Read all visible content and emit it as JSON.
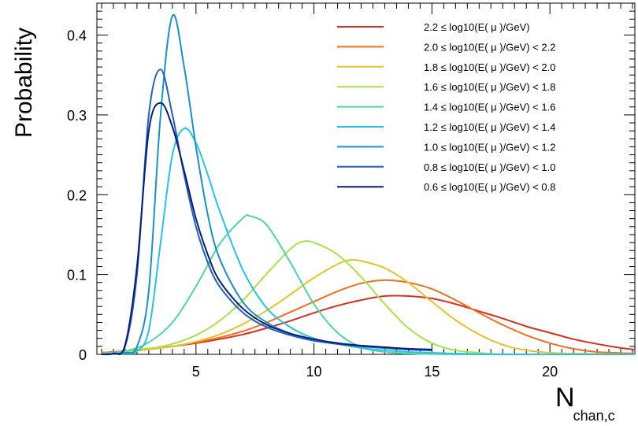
{
  "chart_data": {
    "type": "line",
    "xlabel_main": "N",
    "xlabel_sub": "chan,c",
    "ylabel": "Probability",
    "xlim": [
      0.8,
      23.6
    ],
    "ylim": [
      0,
      0.44
    ],
    "x_ticks": [
      5,
      10,
      15,
      20
    ],
    "x_tick_labels": [
      "5",
      "10",
      "15",
      "20"
    ],
    "y_ticks": [
      0,
      0.1,
      0.2,
      0.3,
      0.4
    ],
    "y_tick_labels": [
      "0",
      "0.1",
      "0.2",
      "0.3",
      "0.4"
    ],
    "legend_position": "top-right",
    "grid": false,
    "series": [
      {
        "name": "2.2 ≤ log10(E( μ )/GeV)",
        "color": "#d7301f",
        "x": [
          1,
          2,
          3,
          4,
          5,
          6,
          7,
          8,
          9,
          10,
          11,
          12,
          13,
          14,
          15,
          16,
          17,
          18,
          19,
          20,
          21,
          22,
          23,
          23.6
        ],
        "y": [
          0.002,
          0.004,
          0.007,
          0.01,
          0.014,
          0.019,
          0.025,
          0.033,
          0.042,
          0.052,
          0.061,
          0.068,
          0.073,
          0.073,
          0.07,
          0.063,
          0.054,
          0.045,
          0.035,
          0.027,
          0.019,
          0.013,
          0.008,
          0.006
        ]
      },
      {
        "name": "2.0 ≤ log10(E( μ )/GeV) < 2.2",
        "color": "#f46d1a",
        "x": [
          1,
          2,
          3,
          4,
          5,
          6,
          7,
          8,
          9,
          10,
          11,
          12,
          13,
          14,
          15,
          16,
          17,
          18,
          19,
          20,
          21,
          22,
          23.6
        ],
        "y": [
          0.002,
          0.004,
          0.007,
          0.01,
          0.015,
          0.021,
          0.029,
          0.04,
          0.053,
          0.066,
          0.079,
          0.089,
          0.093,
          0.09,
          0.082,
          0.068,
          0.052,
          0.037,
          0.024,
          0.014,
          0.007,
          0.003,
          0.001
        ]
      },
      {
        "name": "1.8 ≤ log10(E( μ )/GeV) < 2.0",
        "color": "#e6c229",
        "x": [
          1,
          2,
          3,
          4,
          5,
          6,
          7,
          8,
          9,
          10,
          11,
          11.5,
          12,
          13,
          14,
          15,
          16,
          17,
          18,
          19,
          20,
          21,
          23.6
        ],
        "y": [
          0.001,
          0.003,
          0.006,
          0.01,
          0.016,
          0.025,
          0.038,
          0.055,
          0.075,
          0.096,
          0.113,
          0.118,
          0.117,
          0.108,
          0.09,
          0.066,
          0.043,
          0.025,
          0.012,
          0.005,
          0.002,
          0.001,
          0.0
        ]
      },
      {
        "name": "1.6 ≤ log10(E( μ )/GeV) < 1.8",
        "color": "#a6e34a",
        "x": [
          1,
          2,
          3,
          4,
          5,
          6,
          7,
          8,
          9,
          9.5,
          10,
          11,
          12,
          13,
          14,
          15,
          16,
          17,
          18,
          20,
          23.6
        ],
        "y": [
          0.001,
          0.003,
          0.007,
          0.013,
          0.024,
          0.042,
          0.068,
          0.101,
          0.132,
          0.141,
          0.14,
          0.125,
          0.097,
          0.063,
          0.033,
          0.014,
          0.005,
          0.002,
          0.0,
          0.0,
          0.0
        ]
      },
      {
        "name": "1.4 ≤ log10(E( μ )/GeV) < 1.6",
        "color": "#4fd6a1",
        "x": [
          1,
          2,
          3,
          4,
          5,
          6,
          7,
          7.3,
          8,
          9,
          10,
          11,
          12,
          13,
          14,
          16,
          20,
          23.6
        ],
        "y": [
          0.001,
          0.004,
          0.015,
          0.04,
          0.085,
          0.138,
          0.171,
          0.173,
          0.162,
          0.115,
          0.063,
          0.027,
          0.009,
          0.003,
          0.001,
          0.0,
          0.0,
          0.0
        ]
      },
      {
        "name": "1.2 ≤ log10(E( μ )/GeV) < 1.4",
        "color": "#25c3e8",
        "x": [
          1,
          2,
          2.5,
          3,
          3.5,
          4,
          4.5,
          5,
          5.5,
          6,
          7,
          8,
          9,
          10,
          11,
          12,
          13,
          14,
          15,
          16,
          18,
          23.6
        ],
        "y": [
          0.0,
          0.001,
          0.004,
          0.03,
          0.14,
          0.25,
          0.283,
          0.265,
          0.225,
          0.18,
          0.105,
          0.058,
          0.034,
          0.02,
          0.013,
          0.008,
          0.005,
          0.003,
          0.002,
          0.001,
          0.0,
          0.0
        ]
      },
      {
        "name": "1.0 ≤ log10(E( μ )/GeV) < 1.2",
        "color": "#1890c8",
        "x": [
          1,
          2,
          2.5,
          3,
          3.5,
          4,
          4.5,
          5,
          5.5,
          6,
          7,
          8,
          9,
          10,
          11,
          12,
          13,
          14,
          15
        ],
        "y": [
          0.0,
          0.002,
          0.01,
          0.08,
          0.3,
          0.424,
          0.36,
          0.26,
          0.175,
          0.12,
          0.065,
          0.04,
          0.026,
          0.018,
          0.013,
          0.01,
          0.008,
          0.006,
          0.005
        ]
      },
      {
        "name": "0.8 ≤ log10(E( μ )/GeV) < 1.0",
        "color": "#2060c0",
        "x": [
          1,
          1.5,
          2,
          2.5,
          3,
          3.5,
          4,
          4.5,
          5,
          5.5,
          6,
          7,
          8,
          9,
          10,
          11,
          12,
          13,
          14,
          15
        ],
        "y": [
          0.0,
          0.001,
          0.01,
          0.1,
          0.3,
          0.357,
          0.3,
          0.225,
          0.16,
          0.115,
          0.085,
          0.052,
          0.034,
          0.024,
          0.017,
          0.013,
          0.01,
          0.008,
          0.006,
          0.005
        ]
      },
      {
        "name": "0.6 ≤ log10(E( μ )/GeV) < 0.8",
        "color": "#081d78",
        "x": [
          1,
          1.5,
          2,
          2.5,
          3,
          3.5,
          4,
          4.5,
          5,
          5.5,
          6,
          7,
          8,
          9,
          10,
          11,
          12,
          13,
          14,
          15
        ],
        "y": [
          0.0,
          0.001,
          0.012,
          0.11,
          0.28,
          0.315,
          0.285,
          0.23,
          0.17,
          0.125,
          0.092,
          0.057,
          0.037,
          0.026,
          0.019,
          0.014,
          0.011,
          0.009,
          0.007,
          0.006
        ]
      }
    ]
  }
}
